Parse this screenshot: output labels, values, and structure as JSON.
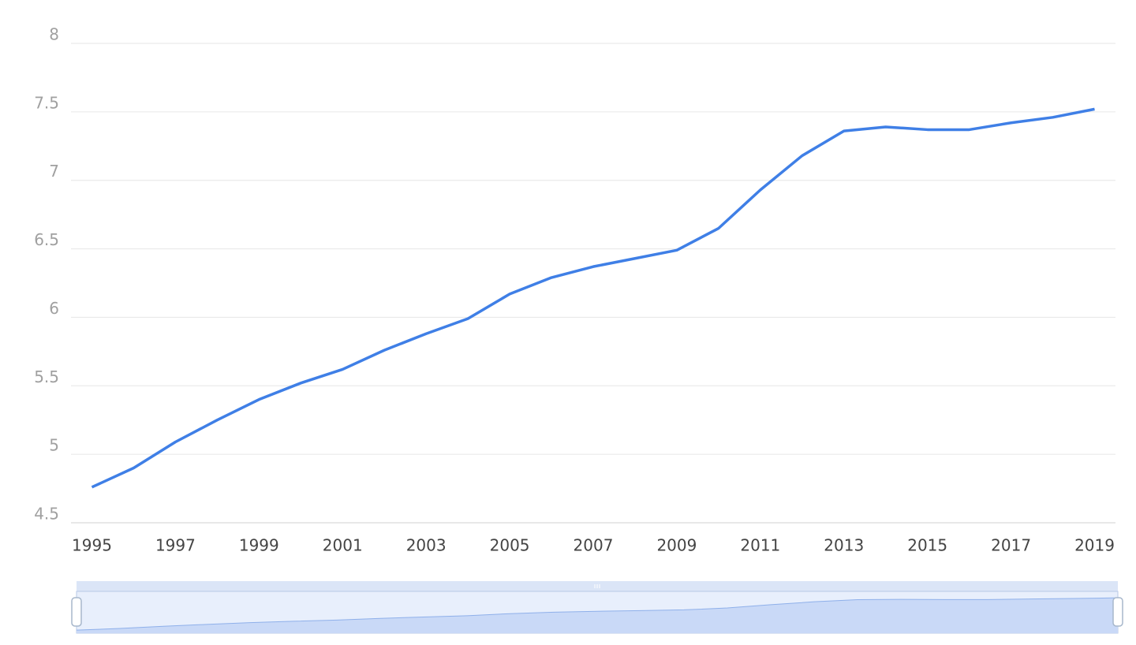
{
  "chart_data": {
    "type": "line",
    "x": [
      1995,
      1996,
      1997,
      1998,
      1999,
      2000,
      2001,
      2002,
      2003,
      2004,
      2005,
      2006,
      2007,
      2008,
      2009,
      2010,
      2011,
      2012,
      2013,
      2014,
      2015,
      2016,
      2017,
      2018,
      2019
    ],
    "series": [
      {
        "color": "#3f7fe6",
        "values": [
          4.76,
          4.9,
          5.09,
          5.25,
          5.4,
          5.52,
          5.62,
          5.76,
          5.88,
          5.99,
          6.17,
          6.29,
          6.37,
          6.43,
          6.49,
          6.65,
          6.93,
          7.18,
          7.36,
          7.39,
          7.37,
          7.37,
          7.42,
          7.46,
          7.52
        ]
      }
    ],
    "xlim": [
      1994.5,
      2019.5
    ],
    "xticks": [
      1995,
      1997,
      1999,
      2001,
      2003,
      2005,
      2007,
      2009,
      2011,
      2013,
      2015,
      2017,
      2019
    ],
    "ylim": [
      4.5,
      8
    ],
    "yticks": [
      4.5,
      5,
      5.5,
      6,
      6.5,
      7,
      7.5,
      8
    ],
    "grid": true
  }
}
